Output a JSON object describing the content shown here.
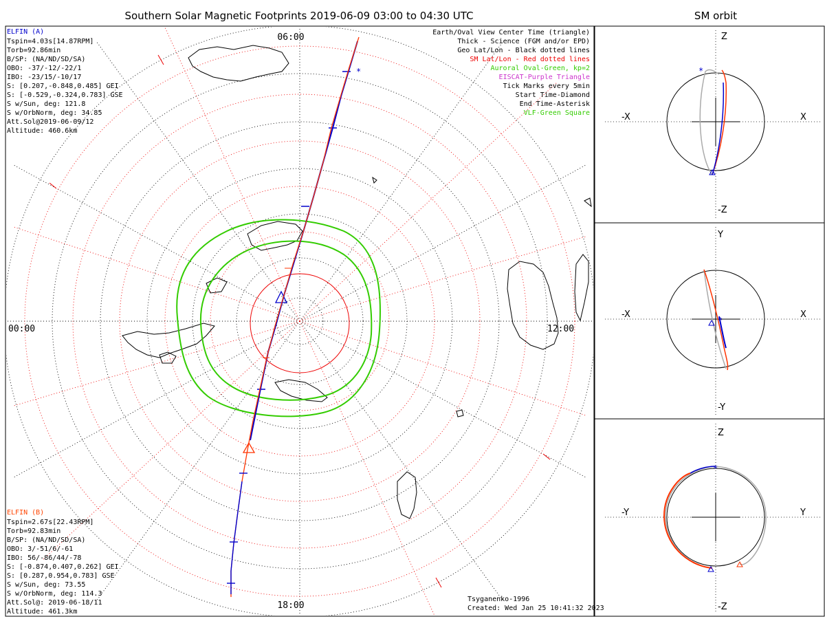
{
  "main_title": "Southern Solar Magnetic Footprints 2019-06-09 03:00 to 04:30 UTC",
  "orbit_title": "SM orbit",
  "time_labels": {
    "top": "06:00",
    "left": "00:00",
    "right": "12:00",
    "bottom": "18:00"
  },
  "elfin_a": {
    "name": "ELFIN (A)",
    "color": "#0000cc",
    "lines": [
      "Tspin=4.03s[14.87RPM]",
      "Torb=92.86min",
      "B/SP: (NA/ND/SD/SA)",
      "OBO: -37/-12/-22/1",
      "IBO: -23/15/-10/17",
      "S: [0.207,-0.848,0.485] GEI",
      "S: [-0.529,-0.324,0.783] GSE",
      "S w/Sun, deg: 121.8",
      "S w/OrbNorm, deg: 34.85",
      "Att.Sol@2019-06-09/12",
      "Altitude: 460.6km"
    ]
  },
  "elfin_b": {
    "name": "ELFIN (B)",
    "color": "#ff4400",
    "lines": [
      "Tspin=2.67s[22.43RPM]",
      "Torb=92.83min",
      "B/SP: (NA/ND/SD/SA)",
      "OBO: 3/-51/6/-61",
      "IBO: 56/-86/44/-78",
      "S: [-0.874,0.407,0.262] GEI",
      "S: [0.287,0.954,0.783] GSE",
      "S w/Sun, deg: 73.55",
      "S w/OrbNorm, deg: 114.3",
      "Att.Sol@: 2019-06-18/11",
      "Altitude: 461.3km"
    ]
  },
  "legend": [
    {
      "text": "Earth/Oval View Center Time (triangle)",
      "color": "#000000"
    },
    {
      "text": "Thick - Science (FGM and/or EPD)",
      "color": "#000000"
    },
    {
      "text": "Geo Lat/Lon - Black dotted lines",
      "color": "#000000"
    },
    {
      "text": "SM Lat/Lon - Red dotted lines",
      "color": "#ee0000"
    },
    {
      "text": "Auroral Oval-Green, kp=2",
      "color": "#33cc00"
    },
    {
      "text": "EISCAT-Purple Triangle",
      "color": "#cc33cc"
    },
    {
      "text": "Tick Marks every 5min",
      "color": "#000000"
    },
    {
      "text": "Start Time-Diamond",
      "color": "#000000"
    },
    {
      "text": "End Time-Asterisk",
      "color": "#000000"
    },
    {
      "text": "VLF-Green Square",
      "color": "#33cc00"
    }
  ],
  "credit": {
    "line1": "Tsyganenko-1996",
    "line2": "Created: Wed Jan 25 10:41:32 2023"
  },
  "panels": [
    {
      "top": "Z",
      "bottom": "-Z",
      "left": "-X",
      "right": "X"
    },
    {
      "top": "Y",
      "bottom": "-Y",
      "left": "-X",
      "right": "X"
    },
    {
      "top": "Z",
      "bottom": "-Z",
      "left": "-Y",
      "right": "Y"
    }
  ],
  "colors": {
    "elfin_a_track": "#0000cc",
    "elfin_b_track": "#ff3300",
    "sm_grid": "#ee0000",
    "geo_grid": "#000000",
    "auroral_oval": "#33cc00",
    "orbit_other": "#aaaaaa"
  }
}
